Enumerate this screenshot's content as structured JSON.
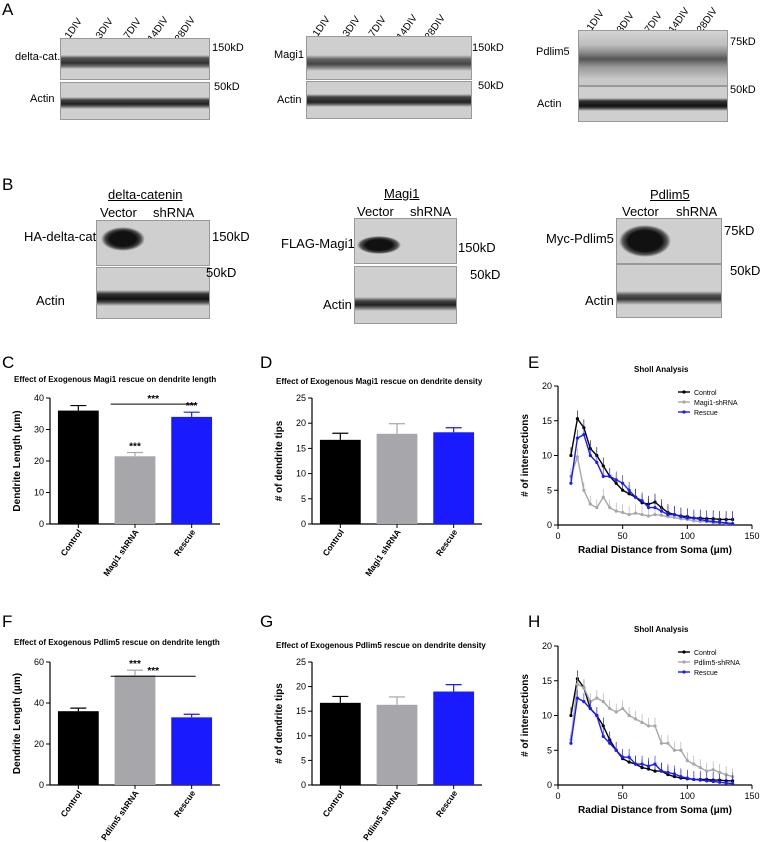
{
  "panel_letters": [
    "A",
    "B",
    "C",
    "D",
    "E",
    "F",
    "G",
    "H"
  ],
  "panelA": {
    "lanes": [
      "1DIV",
      "3DIV",
      "7DIV",
      "14DIV",
      "28DIV"
    ],
    "blots": [
      {
        "protein": "delta-cat.",
        "mw": "150kD",
        "loading": "Actin",
        "loading_mw": "50kD"
      },
      {
        "protein": "Magi1",
        "mw": "150kD",
        "loading": "Actin",
        "loading_mw": "50kD"
      },
      {
        "protein": "Pdlim5",
        "mw": "75kD",
        "loading": "Actin",
        "loading_mw": "50kD"
      }
    ]
  },
  "panelB": {
    "blots": [
      {
        "title": "delta-catenin",
        "lanes": [
          "Vector",
          "shRNA"
        ],
        "protein": "HA-delta-cat.",
        "mw": "150kD",
        "loading": "Actin",
        "loading_mw": "50kD"
      },
      {
        "title": "Magi1",
        "lanes": [
          "Vector",
          "shRNA"
        ],
        "protein": "FLAG-Magi1",
        "mw": "150kD",
        "loading": "Actin",
        "loading_mw": "50kD"
      },
      {
        "title": "Pdlim5",
        "lanes": [
          "Vector",
          "shRNA"
        ],
        "protein": "Myc-Pdlim5",
        "mw": "75kD",
        "loading": "Actin",
        "loading_mw": "50kD"
      }
    ]
  },
  "chart_data": [
    {
      "id": "C",
      "type": "bar",
      "title": "Effect of Exogenous Magi1 rescue on dendrite length",
      "ylabel": "Dendrite Length (μm)",
      "categories": [
        "Control",
        "Magi1 shRNA",
        "Rescue"
      ],
      "values": [
        36,
        21.5,
        34
      ],
      "errors": [
        1.6,
        1.2,
        1.5
      ],
      "colors": [
        "#000000",
        "#a7a7ab",
        "#1a1aff"
      ],
      "ylim": [
        0,
        40
      ],
      "yticks": [
        0,
        10,
        20,
        30,
        40
      ],
      "sig": [
        "",
        "***",
        "***"
      ],
      "bracket": "***"
    },
    {
      "id": "D",
      "type": "bar",
      "title": "Effect of Exogenous Magi1 rescue on dendrite density",
      "ylabel": "# of dendrite tips",
      "categories": [
        "Control",
        "Magi1 shRNA",
        "Rescue"
      ],
      "values": [
        16.7,
        17.9,
        18.2
      ],
      "errors": [
        1.3,
        2.0,
        0.9
      ],
      "colors": [
        "#000000",
        "#a7a7ab",
        "#1a1aff"
      ],
      "ylim": [
        0,
        25
      ],
      "yticks": [
        0,
        5,
        10,
        15,
        20,
        25
      ]
    },
    {
      "id": "E",
      "type": "line",
      "title": "Sholl Analysis",
      "xlabel": "Radial Distance from Soma (μm)",
      "ylabel": "# of intersections",
      "xlim": [
        0,
        150
      ],
      "ylim": [
        0,
        20
      ],
      "xticks": [
        0,
        50,
        100,
        150
      ],
      "yticks": [
        0,
        5,
        10,
        15,
        20
      ],
      "x": [
        10,
        15,
        20,
        25,
        30,
        35,
        40,
        45,
        50,
        55,
        60,
        65,
        70,
        75,
        80,
        85,
        90,
        95,
        100,
        105,
        110,
        115,
        120,
        125,
        130,
        135
      ],
      "series": [
        {
          "name": "Control",
          "color": "#000000",
          "values": [
            10,
            15.3,
            14,
            11,
            10,
            8.5,
            7,
            6,
            5,
            4.5,
            4,
            3.2,
            3,
            3.3,
            2.5,
            1.8,
            1.5,
            1.3,
            1.2,
            1,
            1,
            0.9,
            0.9,
            0.8,
            0.8,
            0.8
          ]
        },
        {
          "name": "Magi1-shRNA",
          "color": "#a7a7ab",
          "values": [
            7,
            9.8,
            5,
            3,
            2.5,
            4,
            2.5,
            2,
            1.8,
            1.5,
            1.7,
            1.5,
            1.3,
            1.5,
            1.4,
            1.2,
            1.1,
            0.9,
            0.8,
            0.6,
            0.5,
            0.5,
            0.3,
            0.3,
            0.2,
            0.2
          ]
        },
        {
          "name": "Rescue",
          "color": "#1a1aff",
          "values": [
            6,
            12.5,
            13,
            10,
            9,
            7,
            7,
            6.5,
            6,
            5,
            4,
            3.5,
            2.5,
            2.5,
            2,
            1.5,
            1.5,
            1.2,
            1,
            1,
            0.8,
            0.6,
            0.5,
            0.4,
            0.3,
            0.2
          ]
        }
      ]
    },
    {
      "id": "F",
      "type": "bar",
      "title": "Effect of Exogenous Pdlim5 rescue on dendrite length",
      "ylabel": "Dendrite Length (μm)",
      "categories": [
        "Control",
        "Pdlim5 shRNA",
        "Rescue"
      ],
      "values": [
        36,
        53.5,
        33
      ],
      "errors": [
        1.5,
        2.5,
        1.5
      ],
      "colors": [
        "#000000",
        "#a7a7ab",
        "#1a1aff"
      ],
      "ylim": [
        0,
        60
      ],
      "yticks": [
        0,
        20,
        40,
        60
      ],
      "sig": [
        "",
        "***",
        ""
      ],
      "bracket": "***"
    },
    {
      "id": "G",
      "type": "bar",
      "title": "Effect of Exogenous Pdlim5 rescue on dendrite density",
      "ylabel": "# of dendrite tips",
      "categories": [
        "Control",
        "Pdlim5 shRNA",
        "Rescue"
      ],
      "values": [
        16.7,
        16.3,
        19
      ],
      "errors": [
        1.3,
        1.6,
        1.4
      ],
      "colors": [
        "#000000",
        "#a7a7ab",
        "#1a1aff"
      ],
      "ylim": [
        0,
        25
      ],
      "yticks": [
        0,
        5,
        10,
        15,
        20,
        25
      ]
    },
    {
      "id": "H",
      "type": "line",
      "title": "Sholl Analysis",
      "xlabel": "Radial Distance from Soma (μm)",
      "ylabel": "# of intersections",
      "xlim": [
        0,
        150
      ],
      "ylim": [
        0,
        20
      ],
      "xticks": [
        0,
        50,
        100,
        150
      ],
      "yticks": [
        0,
        5,
        10,
        15,
        20
      ],
      "x": [
        10,
        15,
        20,
        25,
        30,
        35,
        40,
        45,
        50,
        55,
        60,
        65,
        70,
        75,
        80,
        85,
        90,
        95,
        100,
        105,
        110,
        115,
        120,
        125,
        130,
        135
      ],
      "series": [
        {
          "name": "Control",
          "color": "#000000",
          "values": [
            10,
            15.3,
            14,
            11,
            10,
            8.5,
            6.5,
            5,
            3.8,
            3.3,
            3,
            2.5,
            2.3,
            2,
            2,
            1.5,
            1.2,
            1,
            0.9,
            0.8,
            0.8,
            0.8,
            0.7,
            0.7,
            0.6,
            0.6
          ]
        },
        {
          "name": "Pdlim5-shRNA",
          "color": "#a7a7ab",
          "values": [
            6.5,
            14.5,
            14,
            12,
            12.5,
            12,
            11,
            10.5,
            11,
            10,
            9.5,
            9,
            8.5,
            8.5,
            6,
            6,
            5,
            5,
            3.5,
            3,
            2.5,
            2,
            2.2,
            1.8,
            1.5,
            1.2
          ]
        },
        {
          "name": "Rescue",
          "color": "#1a1aff",
          "values": [
            6,
            12.5,
            12,
            11,
            10,
            7,
            6,
            5,
            4,
            4,
            3,
            3,
            2.7,
            3,
            2,
            1.8,
            1.6,
            1.2,
            1,
            0.8,
            0.7,
            0.6,
            0.5,
            0.4,
            0.3,
            0.2
          ]
        }
      ]
    }
  ]
}
